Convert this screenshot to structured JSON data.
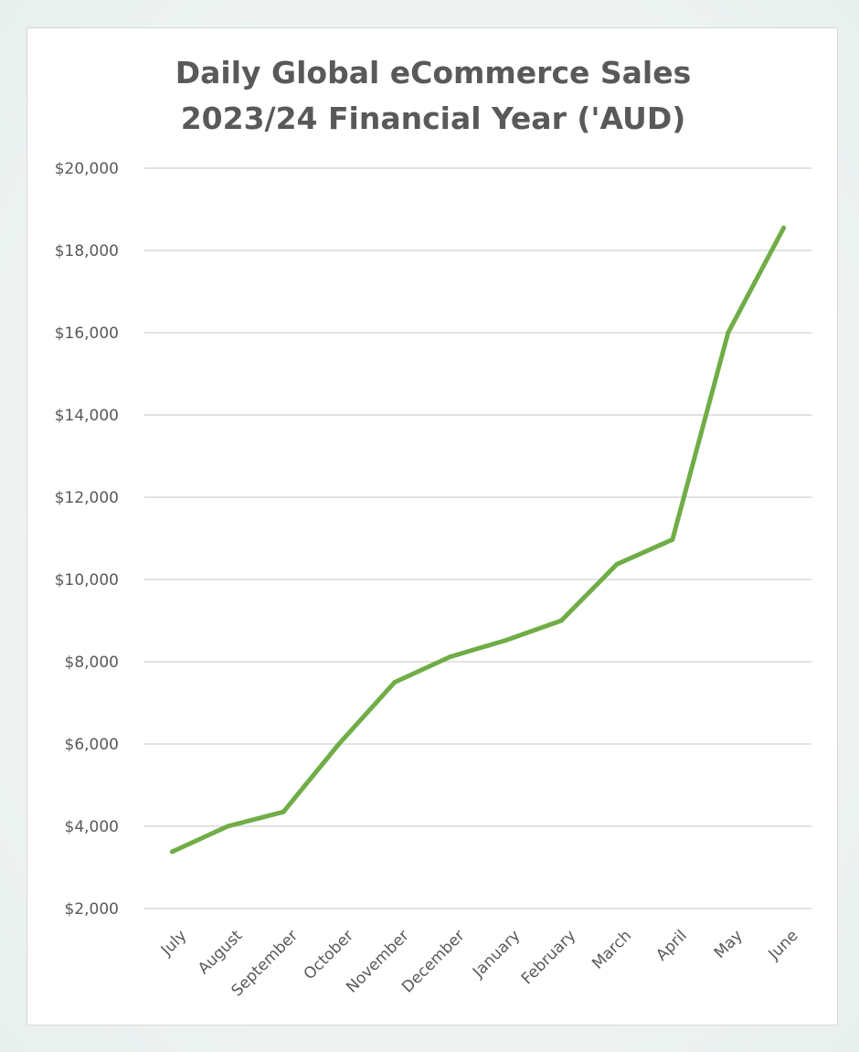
{
  "chart_data": {
    "type": "line",
    "title_lines": [
      "Daily Global eCommerce Sales",
      "2023/24 Financial Year ('AUD)"
    ],
    "xlabel": "",
    "ylabel": "",
    "categories": [
      "July",
      "August",
      "September",
      "October",
      "November",
      "December",
      "January",
      "February",
      "March",
      "April",
      "May",
      "June"
    ],
    "series": [
      {
        "values": [
          3380,
          4000,
          4350,
          6000,
          7500,
          8120,
          8520,
          9000,
          10370,
          10970,
          16000,
          18550
        ]
      }
    ],
    "ylim": [
      2000,
      20000
    ],
    "yticks": [
      2000,
      4000,
      6000,
      8000,
      10000,
      12000,
      14000,
      16000,
      18000,
      20000
    ],
    "ytick_labels": [
      "$2,000",
      "$4,000",
      "$6,000",
      "$8,000",
      "$10,000",
      "$12,000",
      "$14,000",
      "$16,000",
      "$18,000",
      "$20,000"
    ],
    "grid": true,
    "legend": "none",
    "line_color": "#70ad47",
    "grid_color": "#d9d9d9"
  }
}
